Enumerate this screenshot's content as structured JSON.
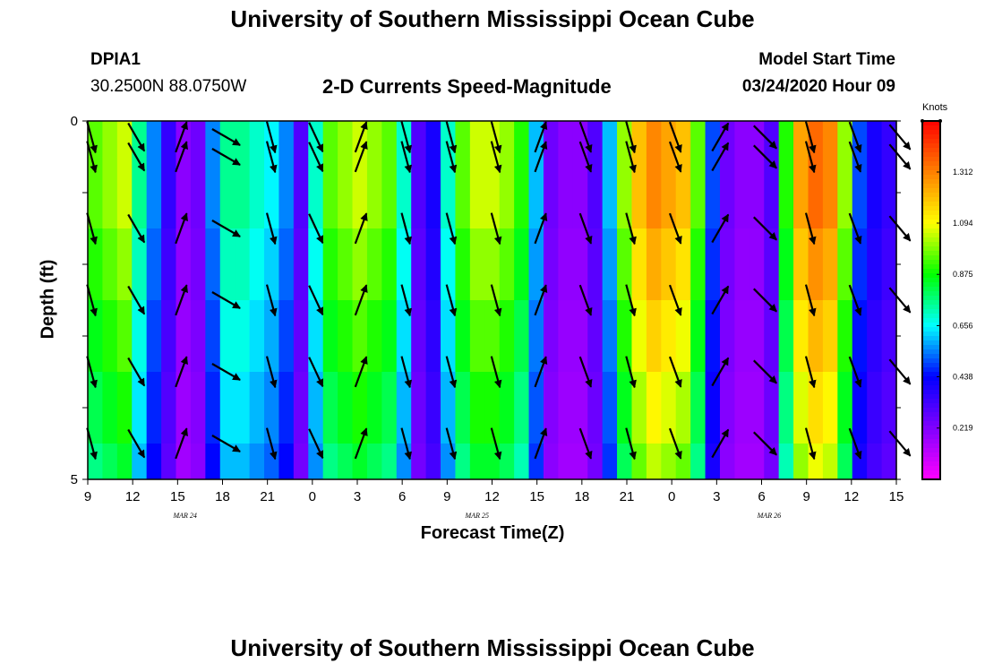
{
  "header": {
    "title": "University of Southern Mississippi Ocean Cube",
    "station_id": "DPIA1",
    "station_coords": "30.2500N 88.0750W",
    "plot_title": "2-D Currents Speed-Magnitude",
    "model_start_label": "Model Start Time",
    "model_start_value": "03/24/2020 Hour 09"
  },
  "footer": {
    "title": "University of Southern Mississippi Ocean Cube"
  },
  "chart_data": {
    "type": "heatmap",
    "title": "2-D Currents Speed-Magnitude",
    "xlabel": "Forecast Time(Z)",
    "ylabel": "Depth (ft)",
    "x_hours": [
      0,
      54
    ],
    "x_tick_labels": [
      "9",
      "12",
      "15",
      "18",
      "21",
      "0",
      "3",
      "6",
      "9",
      "12",
      "15",
      "18",
      "21",
      "0",
      "3",
      "6",
      "9",
      "12",
      "15"
    ],
    "date_labels": [
      {
        "label": "MAR 24",
        "hour": 6.5
      },
      {
        "label": "MAR 25",
        "hour": 26
      },
      {
        "label": "MAR 26",
        "hour": 45.5
      }
    ],
    "y_range": [
      0,
      5
    ],
    "y_tick_labels": [
      {
        "depth": 0,
        "label": "0"
      },
      {
        "depth": 1,
        "label": ""
      },
      {
        "depth": 2,
        "label": ""
      },
      {
        "depth": 3,
        "label": ""
      },
      {
        "depth": 4,
        "label": ""
      },
      {
        "depth": 5,
        "label": "5"
      }
    ],
    "layer_depths": [
      0,
      0.5,
      1.5,
      2.5,
      3.5,
      4.5
    ],
    "colorbar": {
      "unit": "Knots",
      "min": 0.0,
      "max": 1.53,
      "ticks": [
        0.219,
        0.438,
        0.656,
        0.875,
        1.094,
        1.312
      ],
      "colors": [
        "#ff00ff",
        "#8000ff",
        "#0000ff",
        "#00ffff",
        "#00ff00",
        "#ffff00",
        "#ff8000",
        "#ff0000"
      ]
    },
    "speed_by_hour": [
      0.95,
      1.0,
      1.05,
      0.75,
      0.55,
      0.35,
      0.2,
      0.25,
      0.55,
      0.75,
      0.75,
      0.7,
      0.65,
      0.55,
      0.3,
      0.7,
      0.95,
      1.0,
      1.05,
      1.0,
      0.95,
      0.7,
      0.3,
      0.4,
      0.7,
      0.95,
      1.05,
      1.05,
      1.0,
      0.9,
      0.6,
      0.25,
      0.2,
      0.2,
      0.3,
      0.6,
      1.0,
      1.2,
      1.3,
      1.25,
      1.2,
      0.95,
      0.5,
      0.25,
      0.2,
      0.2,
      0.3,
      0.9,
      1.25,
      1.35,
      1.3,
      1.0,
      0.5,
      0.4,
      0.35
    ],
    "depth_factor": [
      1.0,
      1.0,
      0.95,
      0.9,
      0.85,
      0.8
    ],
    "arrow_hours": [
      0,
      3,
      6,
      9,
      12,
      15,
      18,
      21,
      24,
      27,
      30,
      33,
      36,
      39,
      42,
      45,
      48,
      51,
      54
    ],
    "arrow_dir_deg": [
      165,
      150,
      20,
      120,
      165,
      155,
      20,
      165,
      165,
      165,
      20,
      160,
      165,
      160,
      30,
      135,
      165,
      160,
      140
    ]
  }
}
